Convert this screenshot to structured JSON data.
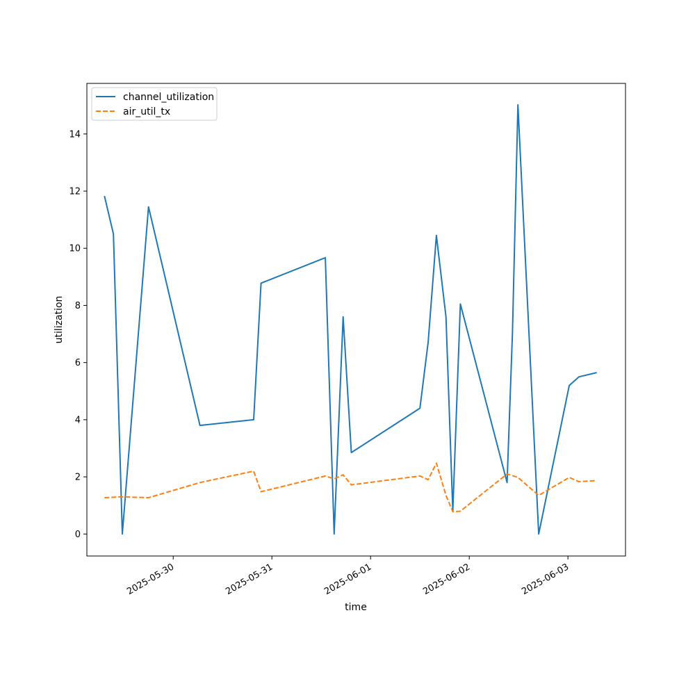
{
  "chart_data": {
    "type": "line",
    "xlabel": "time",
    "ylabel": "utilization",
    "x_ticks": [
      "2025-05-30",
      "2025-05-31",
      "2025-06-01",
      "2025-06-02",
      "2025-06-03"
    ],
    "y_ticks": [
      "0",
      "2",
      "4",
      "6",
      "8",
      "10",
      "12",
      "14"
    ],
    "ylim": [
      -0.77,
      15.77
    ],
    "xlim": [
      "2025-05-29 03:00",
      "2025-06-03 14:00"
    ],
    "grid": false,
    "legend_position": "top-left",
    "series": [
      {
        "name": "channel_utilization",
        "color": "#1f77b4",
        "style": "solid",
        "points": [
          [
            "2025-05-29 07:17",
            11.83
          ],
          [
            "2025-05-29 09:27",
            10.5
          ],
          [
            "2025-05-29 11:37",
            0.0
          ],
          [
            "2025-05-29 18:00",
            11.45
          ],
          [
            "2025-05-30 06:30",
            3.8
          ],
          [
            "2025-05-30 19:34",
            4.0
          ],
          [
            "2025-05-30 21:22",
            8.78
          ],
          [
            "2025-05-31 13:00",
            9.67
          ],
          [
            "2025-05-31 15:08",
            0.0
          ],
          [
            "2025-05-31 17:19",
            7.6
          ],
          [
            "2025-05-31 19:19",
            2.85
          ],
          [
            "2025-06-01 12:00",
            4.4
          ],
          [
            "2025-06-01 14:00",
            6.7
          ],
          [
            "2025-06-01 16:00",
            10.45
          ],
          [
            "2025-06-01 18:20",
            7.6
          ],
          [
            "2025-06-01 20:00",
            0.8
          ],
          [
            "2025-06-01 21:50",
            8.05
          ],
          [
            "2025-06-02 09:12",
            1.8
          ],
          [
            "2025-06-02 10:30",
            7.0
          ],
          [
            "2025-06-02 11:50",
            15.02
          ],
          [
            "2025-06-02 16:53",
            0.0
          ],
          [
            "2025-06-03 00:20",
            5.2
          ],
          [
            "2025-06-03 02:40",
            5.5
          ],
          [
            "2025-06-03 07:00",
            5.65
          ]
        ]
      },
      {
        "name": "air_util_tx",
        "color": "#ff7f0e",
        "style": "dashed",
        "points": [
          [
            "2025-05-29 07:17",
            1.27
          ],
          [
            "2025-05-29 11:37",
            1.3
          ],
          [
            "2025-05-29 18:00",
            1.27
          ],
          [
            "2025-05-30 06:30",
            1.8
          ],
          [
            "2025-05-30 19:34",
            2.2
          ],
          [
            "2025-05-30 21:22",
            1.48
          ],
          [
            "2025-05-31 13:00",
            2.03
          ],
          [
            "2025-05-31 15:08",
            1.93
          ],
          [
            "2025-05-31 17:19",
            2.07
          ],
          [
            "2025-05-31 19:19",
            1.72
          ],
          [
            "2025-06-01 12:00",
            2.03
          ],
          [
            "2025-06-01 14:00",
            1.9
          ],
          [
            "2025-06-01 16:00",
            2.48
          ],
          [
            "2025-06-01 18:20",
            1.35
          ],
          [
            "2025-06-01 20:00",
            0.78
          ],
          [
            "2025-06-01 21:50",
            0.8
          ],
          [
            "2025-06-02 09:12",
            2.1
          ],
          [
            "2025-06-02 11:50",
            1.98
          ],
          [
            "2025-06-02 16:53",
            1.35
          ],
          [
            "2025-06-03 00:20",
            1.98
          ],
          [
            "2025-06-03 02:40",
            1.83
          ],
          [
            "2025-06-03 07:00",
            1.87
          ]
        ]
      }
    ]
  }
}
